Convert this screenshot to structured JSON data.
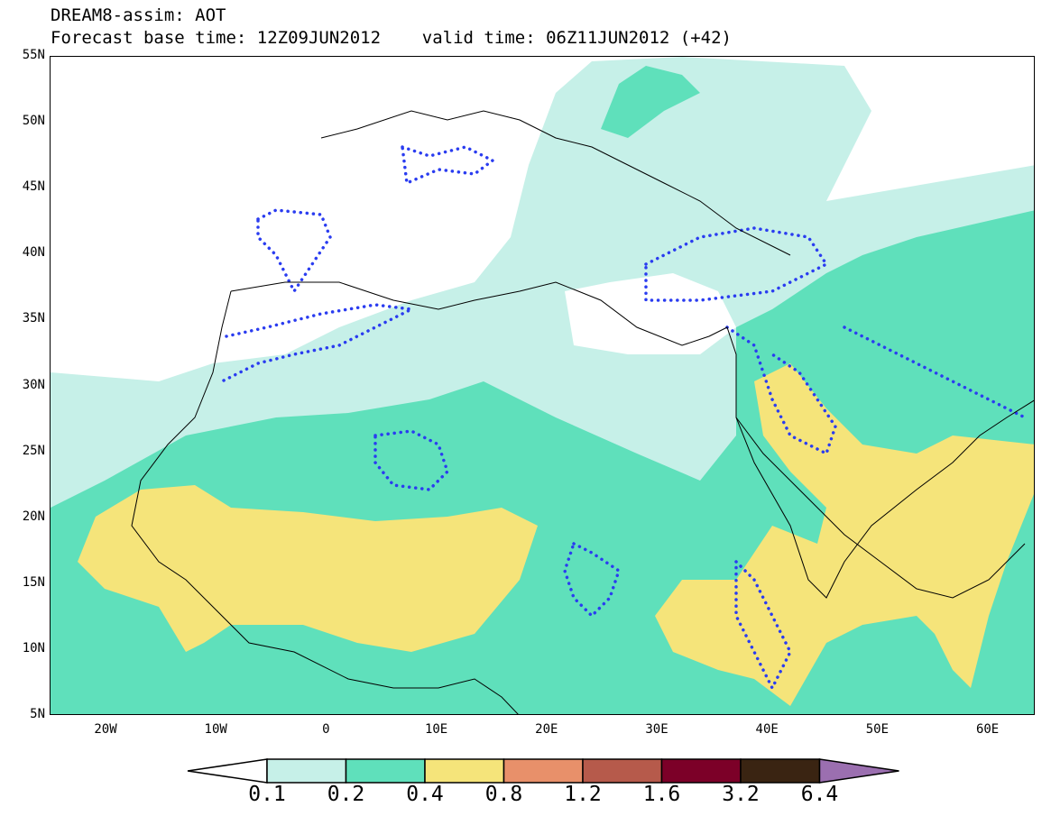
{
  "header": {
    "title_line1": "DREAM8-assim: AOT",
    "title_line2": "Forecast base time: 12Z09JUN2012    valid time: 06Z11JUN2012 (+42)"
  },
  "axes": {
    "lat_labels": [
      "55N",
      "50N",
      "45N",
      "40N",
      "35N",
      "30N",
      "25N",
      "20N",
      "15N",
      "10N",
      "5N"
    ],
    "lon_labels": [
      "20W",
      "10W",
      "0",
      "10E",
      "20E",
      "30E",
      "40E",
      "50E",
      "60E"
    ]
  },
  "colorbar": {
    "labels": [
      "0.1",
      "0.2",
      "0.4",
      "0.8",
      "1.2",
      "1.6",
      "3.2",
      "6.4"
    ],
    "colors": [
      "#c6f0e8",
      "#5fe0bb",
      "#f5e47a",
      "#e8906a",
      "#b65a4b",
      "#7c0028",
      "#3a2412",
      "#9b6fb0"
    ]
  },
  "map": {
    "colors": {
      "level_01_02": "#c6f0e8",
      "level_02_04": "#5fe0bb",
      "level_04_08": "#f5e47a",
      "dotted_contour": "#2a3cf0",
      "coastline": "#000000"
    }
  }
}
